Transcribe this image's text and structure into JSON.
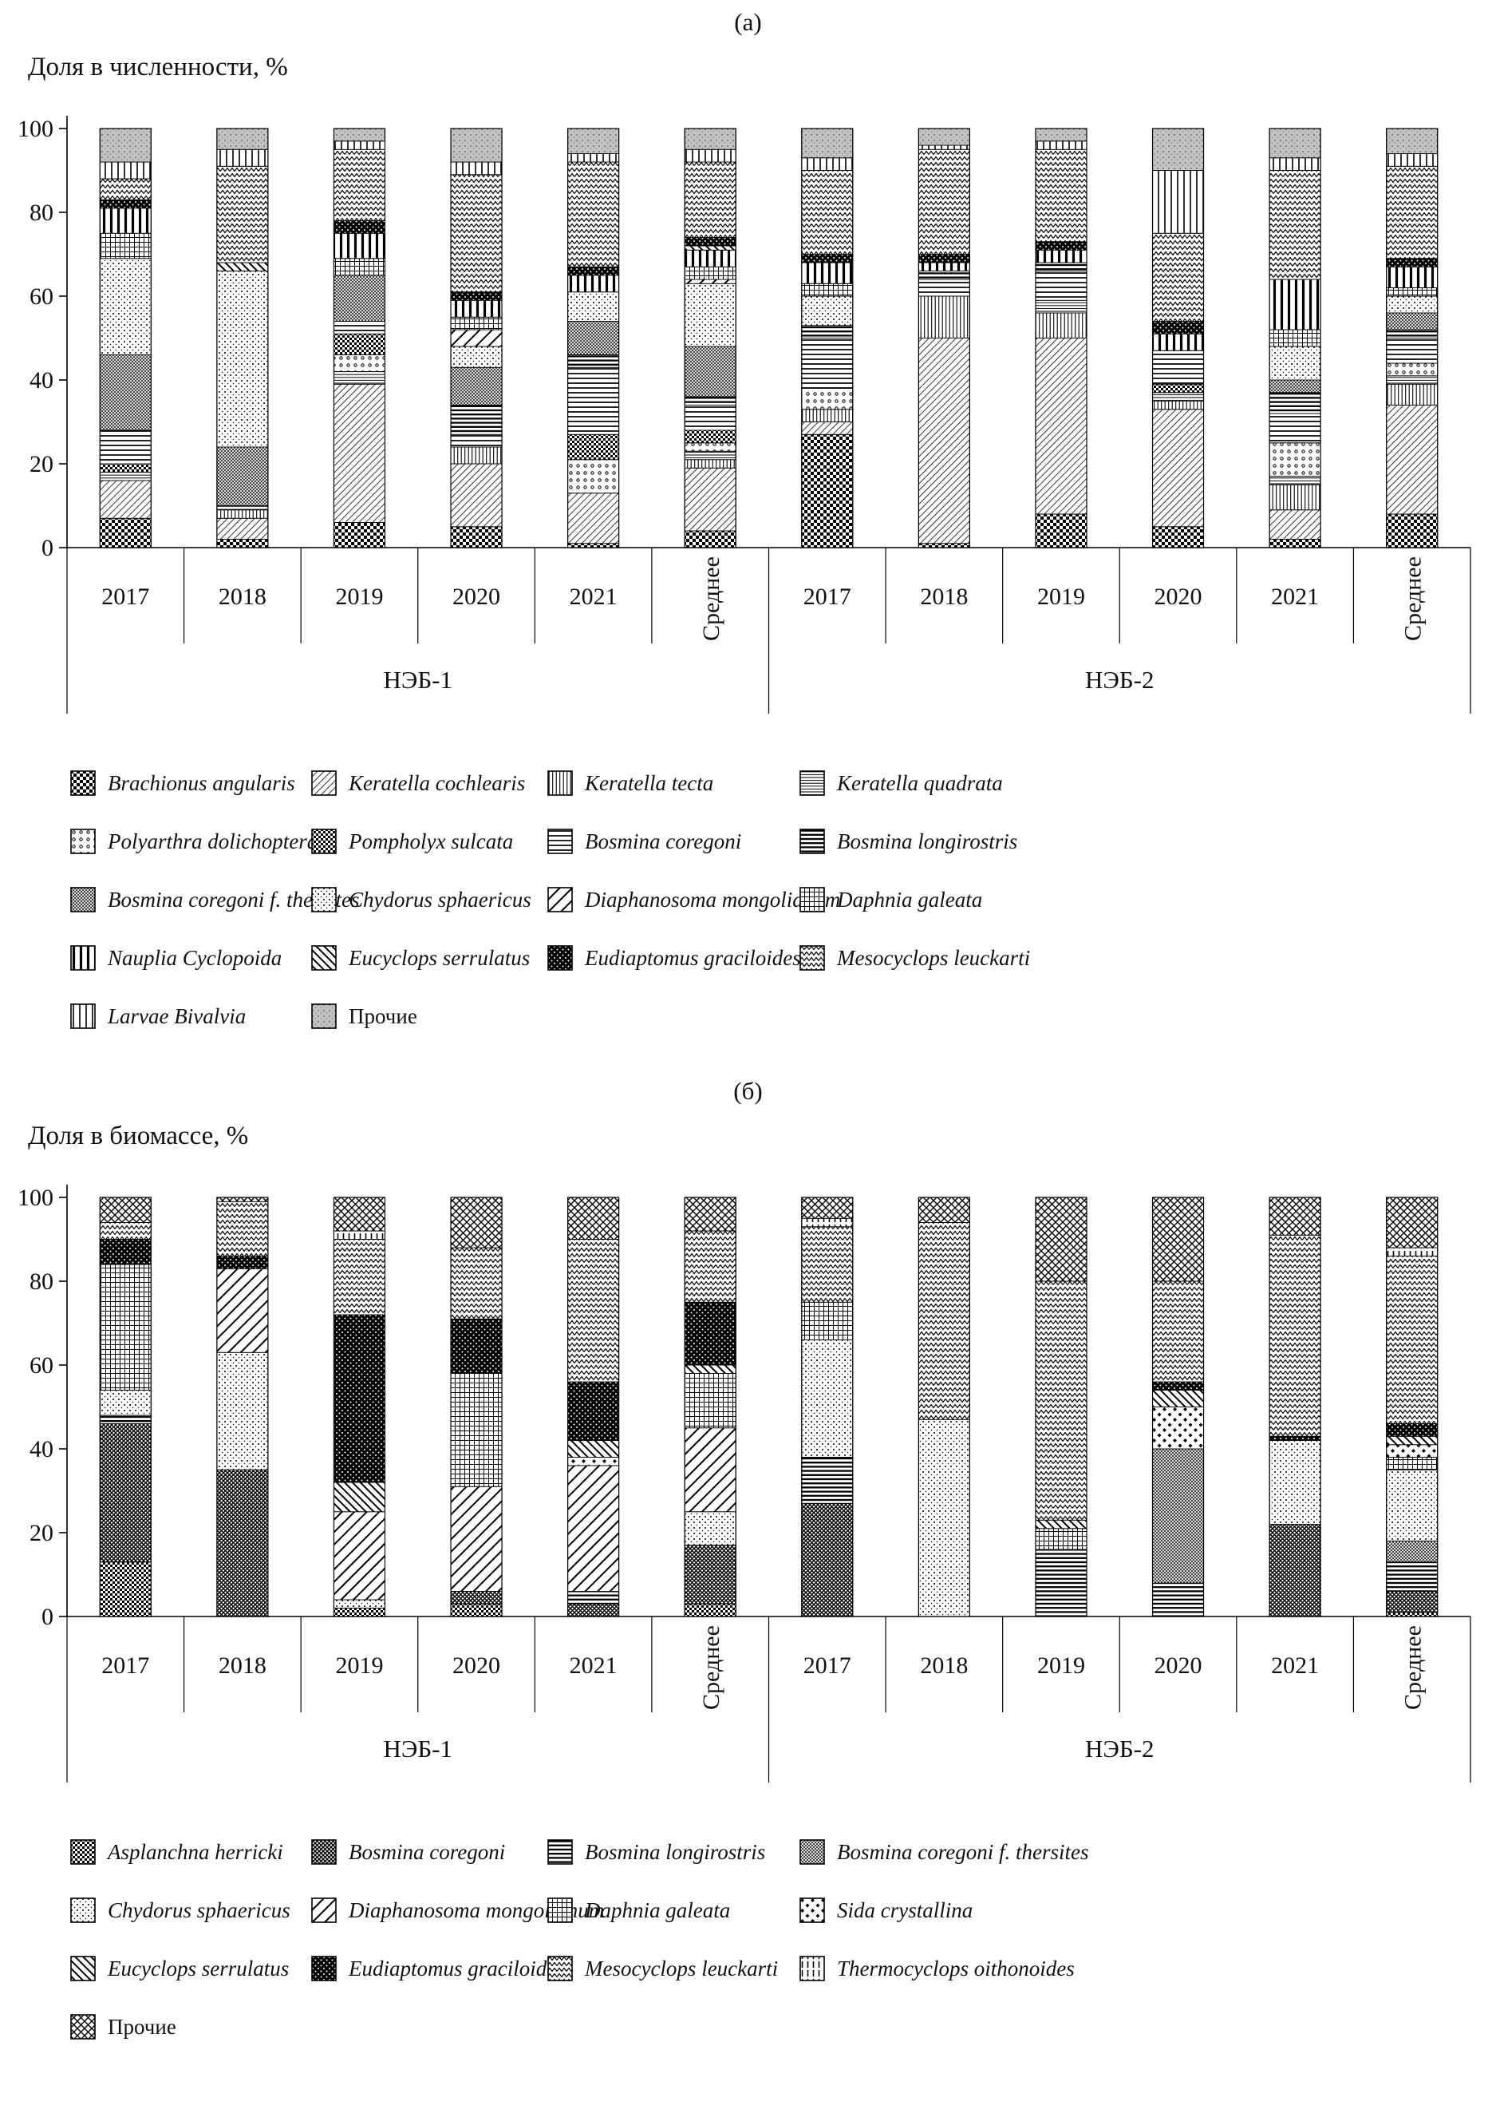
{
  "figure": {
    "panels": [
      {
        "tag": "(а)",
        "ylabel": "Доля в численности, %"
      },
      {
        "tag": "(б)",
        "ylabel": "Доля в биомассе, %"
      }
    ]
  },
  "axis": {
    "ticks": [
      0,
      20,
      40,
      60,
      80,
      100
    ],
    "years": [
      "2017",
      "2018",
      "2019",
      "2020",
      "2021",
      "Среднее"
    ],
    "rotated_year": "Среднее",
    "groups": [
      "НЭБ-1",
      "НЭБ-2"
    ]
  },
  "chart_data": [
    {
      "type": "bar",
      "stacked": true,
      "units": "percent",
      "title": "(а)",
      "ylabel": "Доля в численности, %",
      "ylim": [
        0,
        100
      ],
      "yticks": [
        0,
        20,
        40,
        60,
        80,
        100
      ],
      "legend_position": "bottom",
      "station_groups": [
        "НЭБ-1",
        "НЭБ-2"
      ],
      "categories": [
        "НЭБ-1 2017",
        "НЭБ-1 2018",
        "НЭБ-1 2019",
        "НЭБ-1 2020",
        "НЭБ-1 2021",
        "НЭБ-1 Среднее",
        "НЭБ-2 2017",
        "НЭБ-2 2018",
        "НЭБ-2 2019",
        "НЭБ-2 2020",
        "НЭБ-2 2021",
        "НЭБ-2 Среднее"
      ],
      "series": [
        {
          "name": "Brachionus angularis",
          "pattern": "checker",
          "italic": true,
          "values": [
            7,
            2,
            6,
            5,
            1,
            4,
            27,
            1,
            8,
            5,
            2,
            8
          ]
        },
        {
          "name": "Keratella cochlearis",
          "pattern": "diagL",
          "italic": true,
          "values": [
            9,
            5,
            33,
            15,
            12,
            15,
            3,
            49,
            42,
            28,
            7,
            26
          ]
        },
        {
          "name": "Keratella tecta",
          "pattern": "vertThin",
          "italic": true,
          "values": [
            0,
            2,
            0,
            4,
            0,
            2,
            3,
            10,
            6,
            2,
            6,
            5
          ]
        },
        {
          "name": "Keratella quadrata",
          "pattern": "horizFine",
          "italic": true,
          "values": [
            2,
            0,
            3,
            0,
            0,
            2,
            0,
            0,
            3,
            2,
            2,
            2
          ]
        },
        {
          "name": "Polyarthra dolichoptera",
          "pattern": "dotsOpen",
          "italic": true,
          "values": [
            0,
            0,
            4,
            0,
            8,
            2,
            5,
            0,
            0,
            0,
            8,
            3
          ]
        },
        {
          "name": "Pompholyx sulcata",
          "pattern": "checkerDark",
          "italic": true,
          "values": [
            2,
            0,
            5,
            0,
            6,
            3,
            0,
            0,
            0,
            2,
            0,
            0
          ]
        },
        {
          "name": "Bosmina coregoni",
          "pattern": "horizMed",
          "italic": true,
          "values": [
            8,
            0,
            3,
            3,
            16,
            6,
            12,
            4,
            7,
            8,
            7,
            6
          ]
        },
        {
          "name": "Bosmina longirostris",
          "pattern": "horizBold",
          "italic": true,
          "values": [
            0,
            1,
            0,
            7,
            3,
            2,
            3,
            2,
            2,
            0,
            5,
            2
          ]
        },
        {
          "name": "Bosmina coregoni f. thersites",
          "pattern": "crossFine",
          "italic": true,
          "values": [
            18,
            14,
            11,
            9,
            8,
            12,
            0,
            0,
            0,
            0,
            3,
            4
          ]
        },
        {
          "name": "Chydorus sphaericus",
          "pattern": "dotsSparse",
          "italic": true,
          "values": [
            23,
            42,
            0,
            5,
            7,
            15,
            7,
            0,
            0,
            0,
            8,
            4
          ]
        },
        {
          "name": "Diaphanosoma mongolianum",
          "pattern": "diagBoldL",
          "italic": true,
          "values": [
            0,
            0,
            0,
            4,
            0,
            1,
            0,
            0,
            0,
            0,
            0,
            0
          ]
        },
        {
          "name": "Daphnia galeata",
          "pattern": "grid",
          "italic": true,
          "values": [
            6,
            0,
            4,
            3,
            0,
            3,
            3,
            0,
            0,
            0,
            4,
            2
          ]
        },
        {
          "name": "Nauplia Cyclopoida",
          "pattern": "vertBold",
          "italic": true,
          "values": [
            6,
            0,
            6,
            4,
            4,
            4,
            5,
            2,
            3,
            4,
            12,
            5
          ]
        },
        {
          "name": "Eucyclops serrulatus",
          "pattern": "diagR",
          "italic": true,
          "values": [
            0,
            2,
            0,
            0,
            0,
            1,
            0,
            0,
            0,
            0,
            0,
            0
          ]
        },
        {
          "name": "Eudiaptomus graciloides",
          "pattern": "dotsBlack",
          "italic": true,
          "values": [
            2,
            0,
            3,
            2,
            2,
            2,
            2,
            2,
            2,
            3,
            0,
            2
          ]
        },
        {
          "name": "Mesocyclops leuckarti",
          "pattern": "zigzag",
          "italic": true,
          "values": [
            5,
            23,
            17,
            28,
            25,
            18,
            20,
            25,
            22,
            21,
            26,
            22
          ]
        },
        {
          "name": "Larvae Bivalvia",
          "pattern": "vertWide",
          "italic": true,
          "values": [
            4,
            4,
            2,
            3,
            2,
            3,
            3,
            1,
            2,
            15,
            3,
            3
          ]
        },
        {
          "name": "Прочие",
          "pattern": "grayStipple",
          "italic": false,
          "values": [
            8,
            5,
            3,
            8,
            6,
            5,
            7,
            4,
            3,
            10,
            7,
            6
          ]
        }
      ]
    },
    {
      "type": "bar",
      "stacked": true,
      "units": "percent",
      "title": "(б)",
      "ylabel": "Доля в биомассе, %",
      "ylim": [
        0,
        100
      ],
      "yticks": [
        0,
        20,
        40,
        60,
        80,
        100
      ],
      "legend_position": "bottom",
      "station_groups": [
        "НЭБ-1",
        "НЭБ-2"
      ],
      "categories": [
        "НЭБ-1 2017",
        "НЭБ-1 2018",
        "НЭБ-1 2019",
        "НЭБ-1 2020",
        "НЭБ-1 2021",
        "НЭБ-1 Среднее",
        "НЭБ-2 2017",
        "НЭБ-2 2018",
        "НЭБ-2 2019",
        "НЭБ-2 2020",
        "НЭБ-2 2021",
        "НЭБ-2 Среднее"
      ],
      "series": [
        {
          "name": "Asplanchna herricki",
          "pattern": "checkerDark",
          "italic": true,
          "values": [
            13,
            0,
            2,
            3,
            0,
            3,
            0,
            0,
            0,
            0,
            0,
            1
          ]
        },
        {
          "name": "Bosmina coregoni",
          "pattern": "crossDark",
          "italic": true,
          "values": [
            33,
            35,
            0,
            3,
            3,
            14,
            27,
            0,
            0,
            0,
            22,
            5
          ]
        },
        {
          "name": "Bosmina longirostris",
          "pattern": "horizBold",
          "italic": true,
          "values": [
            2,
            0,
            0,
            0,
            3,
            0,
            11,
            0,
            16,
            8,
            0,
            7
          ]
        },
        {
          "name": "Bosmina coregoni f. thersites",
          "pattern": "crossFine",
          "italic": true,
          "values": [
            0,
            0,
            0,
            0,
            0,
            0,
            0,
            0,
            0,
            32,
            0,
            5
          ]
        },
        {
          "name": "Chydorus sphaericus",
          "pattern": "dotsSparse",
          "italic": true,
          "values": [
            6,
            28,
            2,
            0,
            0,
            8,
            28,
            47,
            0,
            0,
            20,
            17
          ]
        },
        {
          "name": "Diaphanosoma mongolianum",
          "pattern": "diagBoldL",
          "italic": true,
          "values": [
            0,
            20,
            21,
            25,
            30,
            20,
            0,
            0,
            0,
            0,
            0,
            0
          ]
        },
        {
          "name": "Daphnia galeata",
          "pattern": "grid",
          "italic": true,
          "values": [
            30,
            0,
            0,
            27,
            0,
            13,
            9,
            0,
            5,
            0,
            0,
            3
          ]
        },
        {
          "name": "Sida crystallina",
          "pattern": "diamondDots",
          "italic": true,
          "values": [
            0,
            0,
            0,
            0,
            2,
            0,
            0,
            0,
            0,
            10,
            0,
            3
          ]
        },
        {
          "name": "Eucyclops serrulatus",
          "pattern": "diagR",
          "italic": true,
          "values": [
            0,
            0,
            7,
            0,
            4,
            2,
            0,
            0,
            2,
            4,
            0,
            2
          ]
        },
        {
          "name": "Eudiaptomus graciloides",
          "pattern": "dotsBlack",
          "italic": true,
          "values": [
            6,
            3,
            40,
            13,
            14,
            15,
            0,
            0,
            0,
            2,
            1,
            3
          ]
        },
        {
          "name": "Mesocyclops leuckarti",
          "pattern": "zigzag",
          "italic": true,
          "values": [
            4,
            13,
            18,
            17,
            34,
            17,
            18,
            47,
            57,
            24,
            48,
            40
          ]
        },
        {
          "name": "Thermocyclops oithonoides",
          "pattern": "vertDash",
          "italic": true,
          "values": [
            0,
            0,
            2,
            0,
            0,
            0,
            2,
            0,
            0,
            0,
            0,
            2
          ]
        },
        {
          "name": "Прочие",
          "pattern": "crossDiamond",
          "italic": false,
          "values": [
            6,
            1,
            8,
            12,
            10,
            8,
            5,
            6,
            20,
            20,
            9,
            12
          ]
        }
      ]
    }
  ]
}
